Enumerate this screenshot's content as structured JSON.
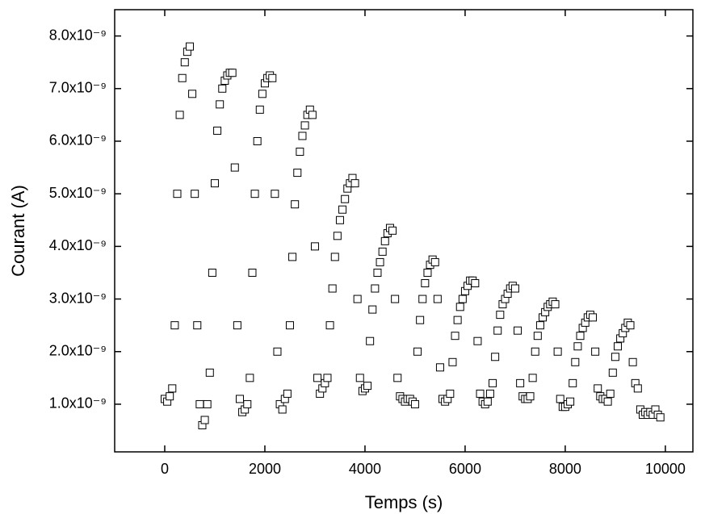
{
  "chart_data": {
    "type": "scatter",
    "x_label": "Temps (s)",
    "y_label": "Courant (A)",
    "xlim": [
      -1000,
      10550
    ],
    "ylim": [
      9.4e-11,
      8.5e-09
    ],
    "xticks": [
      0,
      2000,
      4000,
      6000,
      8000,
      10000
    ],
    "yticks": [
      {
        "value": 1e-09,
        "label": "1.0x10⁻⁹"
      },
      {
        "value": 2e-09,
        "label": "2.0x10⁻⁹"
      },
      {
        "value": 3e-09,
        "label": "3.0x10⁻⁹"
      },
      {
        "value": 4e-09,
        "label": "4.0x10⁻⁹"
      },
      {
        "value": 5e-09,
        "label": "5.0x10⁻⁹"
      },
      {
        "value": 6e-09,
        "label": "6.0x10⁻⁹"
      },
      {
        "value": 7e-09,
        "label": "7.0x10⁻⁹"
      },
      {
        "value": 8e-09,
        "label": "8.0x10⁻⁹"
      }
    ],
    "grid": false,
    "marker": "square",
    "color": "#000000",
    "x": [
      0,
      50,
      100,
      150,
      200,
      250,
      300,
      350,
      400,
      450,
      500,
      550,
      600,
      650,
      700,
      750,
      800,
      850,
      900,
      950,
      1000,
      1050,
      1100,
      1150,
      1200,
      1250,
      1300,
      1350,
      1400,
      1450,
      1500,
      1550,
      1600,
      1650,
      1700,
      1750,
      1800,
      1850,
      1900,
      1950,
      2000,
      2050,
      2100,
      2150,
      2200,
      2250,
      2300,
      2350,
      2400,
      2450,
      2500,
      2550,
      2600,
      2650,
      2700,
      2750,
      2800,
      2850,
      2900,
      2950,
      3000,
      3050,
      3100,
      3150,
      3200,
      3250,
      3300,
      3350,
      3400,
      3450,
      3500,
      3550,
      3600,
      3650,
      3700,
      3750,
      3800,
      3850,
      3900,
      3950,
      4000,
      4050,
      4100,
      4150,
      4200,
      4250,
      4300,
      4350,
      4400,
      4450,
      4500,
      4550,
      4600,
      4650,
      4700,
      4750,
      4800,
      4850,
      4900,
      4950,
      5000,
      5050,
      5100,
      5150,
      5200,
      5250,
      5300,
      5350,
      5400,
      5450,
      5500,
      5550,
      5600,
      5650,
      5700,
      5750,
      5800,
      5850,
      5900,
      5950,
      6000,
      6050,
      6100,
      6150,
      6200,
      6250,
      6300,
      6350,
      6400,
      6450,
      6500,
      6550,
      6600,
      6650,
      6700,
      6750,
      6800,
      6850,
      6900,
      6950,
      7000,
      7050,
      7100,
      7150,
      7200,
      7250,
      7300,
      7350,
      7400,
      7450,
      7500,
      7550,
      7600,
      7650,
      7700,
      7750,
      7800,
      7850,
      7900,
      7950,
      8000,
      8050,
      8100,
      8150,
      8200,
      8250,
      8300,
      8350,
      8400,
      8450,
      8500,
      8550,
      8600,
      8650,
      8700,
      8750,
      8800,
      8850,
      8900,
      8950,
      9000,
      9050,
      9100,
      9150,
      9200,
      9250,
      9300,
      9350,
      9400,
      9450,
      9500,
      9550,
      9600,
      9650,
      9700,
      9750,
      9800,
      9850,
      9900
    ],
    "values": [
      1.1e-09,
      1.05e-09,
      1.15e-09,
      1.3e-09,
      2.5e-09,
      5e-09,
      6.5e-09,
      7.2e-09,
      7.5e-09,
      7.7e-09,
      7.8e-09,
      6.9e-09,
      5e-09,
      2.5e-09,
      1e-09,
      6e-10,
      7e-10,
      1e-09,
      1.6e-09,
      3.5e-09,
      5.2e-09,
      6.2e-09,
      6.7e-09,
      7e-09,
      7.15e-09,
      7.25e-09,
      7.3e-09,
      7.3e-09,
      5.5e-09,
      2.5e-09,
      1.1e-09,
      8.5e-10,
      9e-10,
      1e-09,
      1.5e-09,
      3.5e-09,
      5e-09,
      6e-09,
      6.6e-09,
      6.9e-09,
      7.1e-09,
      7.2e-09,
      7.25e-09,
      7.2e-09,
      5e-09,
      2e-09,
      1e-09,
      9e-10,
      1.1e-09,
      1.2e-09,
      2.5e-09,
      3.8e-09,
      4.8e-09,
      5.4e-09,
      5.8e-09,
      6.1e-09,
      6.3e-09,
      6.5e-09,
      6.6e-09,
      6.5e-09,
      4e-09,
      1.5e-09,
      1.2e-09,
      1.3e-09,
      1.4e-09,
      1.5e-09,
      2.5e-09,
      3.2e-09,
      3.8e-09,
      4.2e-09,
      4.5e-09,
      4.7e-09,
      4.9e-09,
      5.1e-09,
      5.2e-09,
      5.3e-09,
      5.2e-09,
      3e-09,
      1.5e-09,
      1.25e-09,
      1.3e-09,
      1.35e-09,
      2.2e-09,
      2.8e-09,
      3.2e-09,
      3.5e-09,
      3.7e-09,
      3.9e-09,
      4.1e-09,
      4.25e-09,
      4.35e-09,
      4.3e-09,
      3e-09,
      1.5e-09,
      1.15e-09,
      1.1e-09,
      1.05e-09,
      1.1e-09,
      1.1e-09,
      1.05e-09,
      1e-09,
      2e-09,
      2.6e-09,
      3e-09,
      3.3e-09,
      3.5e-09,
      3.65e-09,
      3.75e-09,
      3.7e-09,
      3e-09,
      1.7e-09,
      1.1e-09,
      1.05e-09,
      1.1e-09,
      1.2e-09,
      1.8e-09,
      2.3e-09,
      2.6e-09,
      2.85e-09,
      3e-09,
      3.15e-09,
      3.25e-09,
      3.35e-09,
      3.35e-09,
      3.3e-09,
      2.2e-09,
      1.2e-09,
      1.05e-09,
      1e-09,
      1.05e-09,
      1.2e-09,
      1.4e-09,
      1.9e-09,
      2.4e-09,
      2.7e-09,
      2.9e-09,
      3e-09,
      3.1e-09,
      3.2e-09,
      3.25e-09,
      3.2e-09,
      2.4e-09,
      1.4e-09,
      1.15e-09,
      1.1e-09,
      1.1e-09,
      1.15e-09,
      1.5e-09,
      2e-09,
      2.3e-09,
      2.5e-09,
      2.65e-09,
      2.75e-09,
      2.85e-09,
      2.9e-09,
      2.95e-09,
      2.9e-09,
      2e-09,
      1.1e-09,
      9.5e-10,
      9.5e-10,
      1e-09,
      1.05e-09,
      1.4e-09,
      1.8e-09,
      2.1e-09,
      2.3e-09,
      2.45e-09,
      2.55e-09,
      2.65e-09,
      2.7e-09,
      2.65e-09,
      2e-09,
      1.3e-09,
      1.15e-09,
      1.1e-09,
      1.1e-09,
      1.05e-09,
      1.2e-09,
      1.6e-09,
      1.9e-09,
      2.1e-09,
      2.25e-09,
      2.35e-09,
      2.45e-09,
      2.55e-09,
      2.5e-09,
      1.8e-09,
      1.4e-09,
      1.3e-09,
      9e-10,
      8e-10,
      8.5e-10,
      8e-10,
      8.5e-10,
      8e-10,
      9e-10,
      8e-10,
      7.5e-10
    ]
  }
}
